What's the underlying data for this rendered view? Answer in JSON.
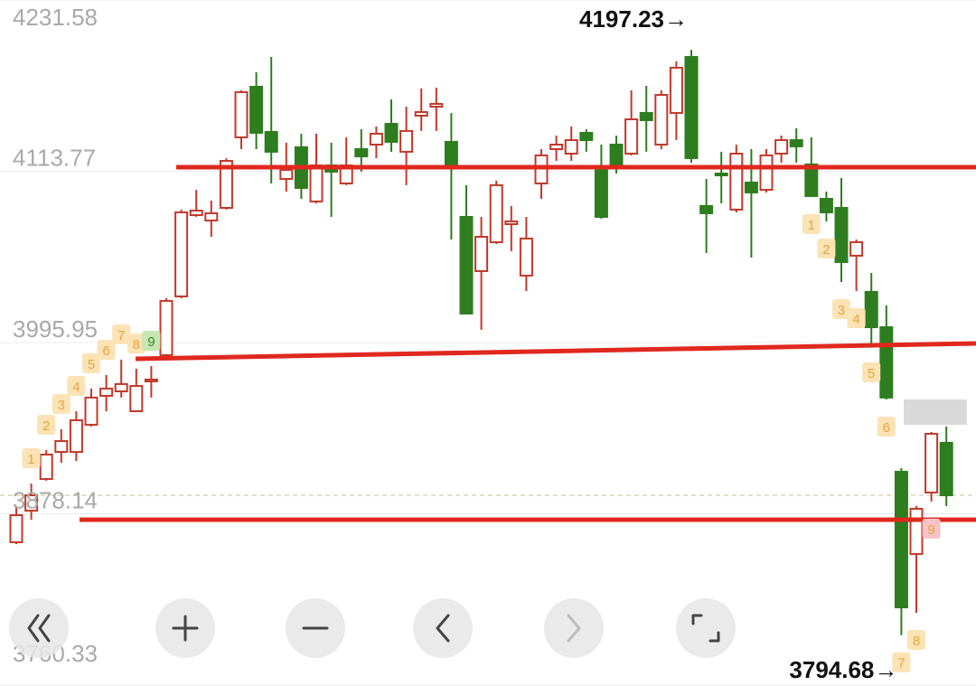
{
  "chart_data": {
    "type": "candlestick",
    "ylim": [
      3760.33,
      4231.58
    ],
    "yticks": [
      4231.58,
      4113.77,
      3995.95,
      3878.14,
      3760.33
    ],
    "grid": true,
    "up_color": "#c0392b",
    "down_color": "#2e7d1f",
    "last_price": 3890.9,
    "open": [
      3858.6,
      3880.3,
      3902.1,
      3920.7,
      3920.7,
      3939.4,
      3959.3,
      3962.4,
      3948.7,
      3969.2,
      3987.3,
      4027.7,
      4083.6,
      4079.9,
      4088.6,
      4137.1,
      4171.9,
      4140.8,
      4108.5,
      4130.3,
      4093.0,
      4117.8,
      4105.4,
      4129.0,
      4132.1,
      4146.4,
      4127.2,
      4152.0,
      4158.2,
      4134.0,
      4082.4,
      4045.1,
      4065.0,
      4077.4,
      4042.0,
      4105.4,
      4129.0,
      4125.9,
      4140.2,
      4114.7,
      4132.1,
      4125.9,
      4153.9,
      4132.1,
      4153.9,
      4192.4,
      4089.9,
      4112.2,
      4087.4,
      4106.0,
      4101.0,
      4125.9,
      4135.2,
      4118.5,
      4094.8,
      4088.6,
      4055.7,
      4030.8,
      4006.5,
      3907.1,
      3850.5,
      3892.8,
      3927.0
    ],
    "high": [
      3883.4,
      3899.0,
      3922.0,
      3936.3,
      3948.7,
      3964.3,
      3973.6,
      3984.2,
      3977.9,
      3979.8,
      4026.4,
      4087.4,
      4101.0,
      4093.6,
      4122.8,
      4169.4,
      4181.9,
      4192.4,
      4133.4,
      4139.6,
      4139.6,
      4133.4,
      4137.1,
      4142.7,
      4144.6,
      4163.2,
      4158.2,
      4170.7,
      4171.3,
      4153.9,
      4104.2,
      4082.4,
      4107.3,
      4089.9,
      4082.4,
      4129.0,
      4138.3,
      4144.6,
      4142.7,
      4132.1,
      4138.3,
      4169.4,
      4172.5,
      4169.4,
      4189.3,
      4197.23,
      4108.5,
      4127.2,
      4132.1,
      4129.0,
      4129.0,
      4138.3,
      4143.3,
      4137.1,
      4099.8,
      4109.1,
      4066.8,
      4043.8,
      4021.5,
      3909.6,
      3883.4,
      3934.4,
      3938.2
    ],
    "low": [
      3857.3,
      3874.1,
      3900.9,
      3913.3,
      3914.5,
      3938.2,
      3948.7,
      3958.1,
      3948.7,
      3958.1,
      3986.0,
      4026.4,
      4082.4,
      4068.7,
      4087.4,
      4129.0,
      4129.0,
      4105.4,
      4099.8,
      4094.8,
      4091.7,
      4082.4,
      4104.2,
      4113.5,
      4122.8,
      4127.2,
      4104.2,
      4141.5,
      4141.5,
      4066.8,
      4015.2,
      4004.7,
      4063.7,
      4058.8,
      4031.4,
      4094.8,
      4120.9,
      4120.9,
      4127.2,
      4081.1,
      4112.2,
      4124.7,
      4127.2,
      4129.0,
      4135.2,
      4119.7,
      4057.5,
      4091.7,
      4085.5,
      4054.4,
      4099.2,
      4119.7,
      4119.7,
      4096.1,
      4079.3,
      4037.6,
      4031.4,
      3994.1,
      3956.8,
      3794.68,
      3810.1,
      3886.6,
      3883.4
    ],
    "close": [
      3877.2,
      3890.9,
      3918.9,
      3928.2,
      3942.5,
      3958.1,
      3964.3,
      3967.4,
      3966.1,
      3970.5,
      4024.6,
      4085.5,
      4086.7,
      4084.9,
      4120.9,
      4168.2,
      4140.2,
      4127.2,
      4114.7,
      4102.3,
      4117.8,
      4113.5,
      4117.8,
      4124.0,
      4139.6,
      4134.0,
      4141.5,
      4154.5,
      4160.1,
      4117.8,
      4015.9,
      4068.7,
      4104.2,
      4079.3,
      4067.5,
      4124.7,
      4132.1,
      4135.2,
      4135.2,
      4082.4,
      4117.8,
      4149.5,
      4148.9,
      4166.3,
      4185.0,
      4122.8,
      4084.9,
      4111.0,
      4125.9,
      4099.2,
      4124.7,
      4135.2,
      4130.9,
      4096.7,
      4085.5,
      4051.3,
      4065.0,
      4006.5,
      3958.1,
      3813.8,
      3881.6,
      3933.2,
      3890.9
    ],
    "markers": [
      {
        "index": 1,
        "label": "1",
        "position": "above",
        "color": "#fbe3b5"
      },
      {
        "index": 2,
        "label": "2",
        "position": "above",
        "color": "#fbe3b5"
      },
      {
        "index": 3,
        "label": "3",
        "position": "above",
        "color": "#fbe3b5"
      },
      {
        "index": 4,
        "label": "4",
        "position": "above",
        "color": "#fbe3b5"
      },
      {
        "index": 5,
        "label": "5",
        "position": "above",
        "color": "#fbe3b5"
      },
      {
        "index": 6,
        "label": "6",
        "position": "above",
        "color": "#fbe3b5"
      },
      {
        "index": 7,
        "label": "7",
        "position": "above",
        "color": "#fbe3b5"
      },
      {
        "index": 8,
        "label": "8",
        "position": "above",
        "color": "#fbe3b5"
      },
      {
        "index": 9,
        "label": "9",
        "position": "above",
        "color": "#c6e6b3"
      },
      {
        "index": 53,
        "label": "1",
        "position": "below",
        "color": "#fbe3b5"
      },
      {
        "index": 54,
        "label": "2",
        "position": "below",
        "color": "#fbe3b5"
      },
      {
        "index": 55,
        "label": "3",
        "position": "below",
        "color": "#fbe3b5"
      },
      {
        "index": 56,
        "label": "4",
        "position": "below",
        "color": "#fbe3b5"
      },
      {
        "index": 57,
        "label": "5",
        "position": "below",
        "color": "#fbe3b5"
      },
      {
        "index": 58,
        "label": "6",
        "position": "below",
        "color": "#fbe3b5"
      },
      {
        "index": 59,
        "label": "7",
        "position": "below",
        "color": "#fbe3b5"
      },
      {
        "index": 60,
        "label": "8",
        "position": "below",
        "color": "#fbe3b5"
      },
      {
        "index": 61,
        "label": "9",
        "position": "below",
        "color": "#f6c4c4"
      }
    ],
    "annotations": [
      {
        "text": "4197.23→",
        "index": 45,
        "position": "above"
      },
      {
        "text": "3794.68→",
        "index": 59,
        "position": "below"
      }
    ]
  }
}
